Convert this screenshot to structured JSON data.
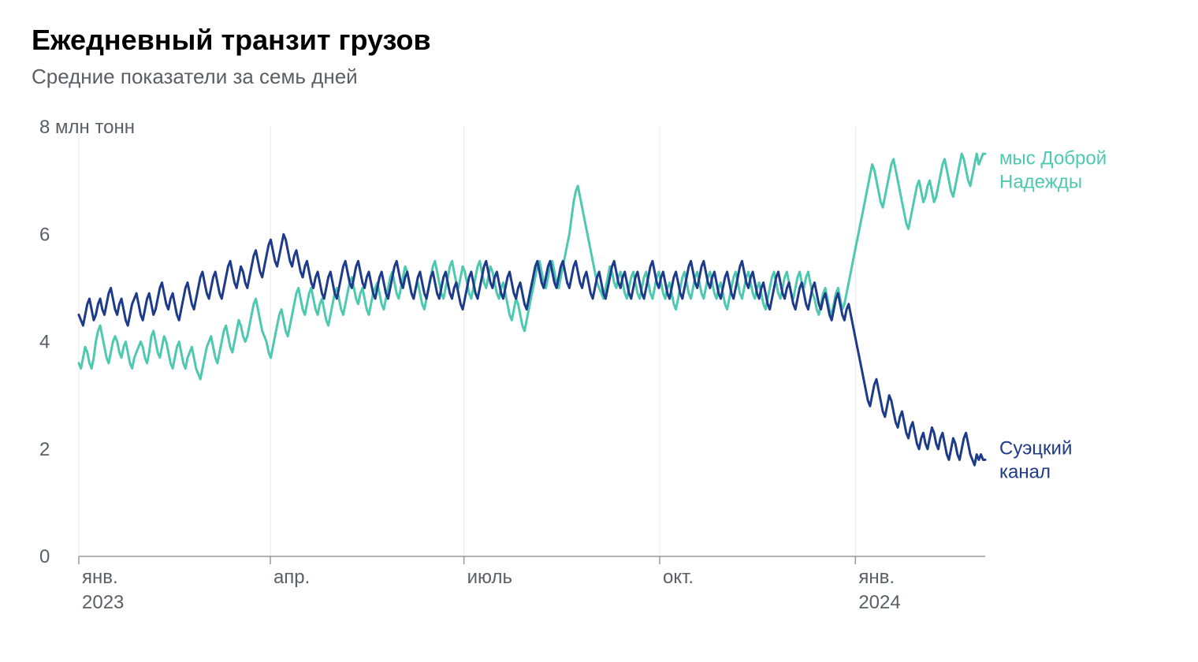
{
  "chart": {
    "type": "line",
    "title": "Ежедневный транзит грузов",
    "subtitle": "Средние показатели за семь дней",
    "y_unit_label": "8 млн тонн",
    "background_color": "#ffffff",
    "grid_color": "#e8e8e8",
    "axis_color": "#9a9a9a",
    "label_color": "#5a5f66",
    "title_fontsize": 36,
    "subtitle_fontsize": 26,
    "tick_fontsize": 24,
    "line_width": 3,
    "ylim": [
      0,
      8
    ],
    "yticks": [
      0,
      2,
      4,
      6
    ],
    "y_extra_label_at": 8,
    "x_range_days": 426,
    "xticks": [
      {
        "day": 0,
        "label": "янв.",
        "year": "2023"
      },
      {
        "day": 90,
        "label": "апр.",
        "year": ""
      },
      {
        "day": 181,
        "label": "июль",
        "year": ""
      },
      {
        "day": 273,
        "label": "окт.",
        "year": ""
      },
      {
        "day": 365,
        "label": "янв.",
        "year": "2024"
      }
    ],
    "series": [
      {
        "name": "мыс Доброй Надежды",
        "labelLines": [
          "мыс Доброй",
          "Надежды"
        ],
        "color": "#4ec9b0",
        "label_y": 7.3,
        "values": [
          3.6,
          3.5,
          3.7,
          3.9,
          3.8,
          3.6,
          3.5,
          3.7,
          4.0,
          4.2,
          4.3,
          4.1,
          3.9,
          3.7,
          3.6,
          3.8,
          4.0,
          4.1,
          4.0,
          3.8,
          3.7,
          3.9,
          4.0,
          3.8,
          3.6,
          3.5,
          3.7,
          3.8,
          3.9,
          4.0,
          3.9,
          3.7,
          3.6,
          3.8,
          4.1,
          4.2,
          4.0,
          3.8,
          3.7,
          3.9,
          4.1,
          4.0,
          3.8,
          3.6,
          3.5,
          3.7,
          3.9,
          4.0,
          3.8,
          3.6,
          3.5,
          3.7,
          3.8,
          3.9,
          3.7,
          3.5,
          3.4,
          3.3,
          3.5,
          3.7,
          3.9,
          4.0,
          4.1,
          3.9,
          3.7,
          3.6,
          3.8,
          4.0,
          4.2,
          4.3,
          4.1,
          3.9,
          3.8,
          4.0,
          4.2,
          4.4,
          4.3,
          4.1,
          4.0,
          4.1,
          4.3,
          4.5,
          4.7,
          4.8,
          4.6,
          4.4,
          4.2,
          4.1,
          4.0,
          3.8,
          3.7,
          3.9,
          4.1,
          4.3,
          4.5,
          4.6,
          4.4,
          4.2,
          4.1,
          4.3,
          4.5,
          4.7,
          4.9,
          5.0,
          4.8,
          4.6,
          4.5,
          4.7,
          4.9,
          5.0,
          4.8,
          4.6,
          4.5,
          4.7,
          4.8,
          4.6,
          4.4,
          4.3,
          4.5,
          4.7,
          4.9,
          5.0,
          4.8,
          4.6,
          4.5,
          4.7,
          4.9,
          5.1,
          5.2,
          5.0,
          4.8,
          4.7,
          4.9,
          5.0,
          4.8,
          4.6,
          4.5,
          4.7,
          4.9,
          5.0,
          5.1,
          4.9,
          4.7,
          4.6,
          4.8,
          5.0,
          5.2,
          5.3,
          5.1,
          4.9,
          4.8,
          5.0,
          5.2,
          5.4,
          5.3,
          5.1,
          4.9,
          4.8,
          5.0,
          5.1,
          4.9,
          4.7,
          4.6,
          4.8,
          5.0,
          5.2,
          5.4,
          5.5,
          5.3,
          5.1,
          4.9,
          4.8,
          5.0,
          5.2,
          5.4,
          5.5,
          5.3,
          5.1,
          5.0,
          5.2,
          5.4,
          5.3,
          5.1,
          4.9,
          4.8,
          5.0,
          5.2,
          5.4,
          5.5,
          5.3,
          5.1,
          5.0,
          5.2,
          5.4,
          5.3,
          5.1,
          4.9,
          4.8,
          5.0,
          5.1,
          4.9,
          4.7,
          4.5,
          4.4,
          4.6,
          4.8,
          4.7,
          4.5,
          4.3,
          4.2,
          4.4,
          4.6,
          4.8,
          5.0,
          5.2,
          5.4,
          5.5,
          5.3,
          5.1,
          5.0,
          5.2,
          5.4,
          5.5,
          5.3,
          5.1,
          5.0,
          5.2,
          5.4,
          5.6,
          5.8,
          6.0,
          6.3,
          6.6,
          6.8,
          6.9,
          6.7,
          6.5,
          6.3,
          6.1,
          5.9,
          5.7,
          5.5,
          5.3,
          5.1,
          5.0,
          4.9,
          4.8,
          5.0,
          5.2,
          5.4,
          5.3,
          5.1,
          5.0,
          5.2,
          5.3,
          5.1,
          4.9,
          4.8,
          5.0,
          5.2,
          5.3,
          5.1,
          4.9,
          4.8,
          5.0,
          5.2,
          5.3,
          5.1,
          4.9,
          4.8,
          5.0,
          5.2,
          5.3,
          5.1,
          4.9,
          4.8,
          5.0,
          5.1,
          4.9,
          4.7,
          4.6,
          4.8,
          5.0,
          5.2,
          5.3,
          5.1,
          4.9,
          4.8,
          5.0,
          5.2,
          5.3,
          5.1,
          4.9,
          4.8,
          5.0,
          5.2,
          5.3,
          5.1,
          4.9,
          4.8,
          5.0,
          5.1,
          4.9,
          4.7,
          4.6,
          4.8,
          5.0,
          5.2,
          5.3,
          5.1,
          4.9,
          4.8,
          5.0,
          5.2,
          5.3,
          5.1,
          4.9,
          4.8,
          5.0,
          5.1,
          4.9,
          4.7,
          4.6,
          4.8,
          5.0,
          5.2,
          5.3,
          5.1,
          4.9,
          4.8,
          5.0,
          5.2,
          5.3,
          5.1,
          4.9,
          4.8,
          5.0,
          5.2,
          5.3,
          5.1,
          5.0,
          5.2,
          5.3,
          5.1,
          4.9,
          4.8,
          4.6,
          4.5,
          4.7,
          4.9,
          5.0,
          4.8,
          4.6,
          4.5,
          4.7,
          4.9,
          5.0,
          4.8,
          4.6,
          4.7,
          4.9,
          5.1,
          5.3,
          5.5,
          5.7,
          5.9,
          6.1,
          6.3,
          6.5,
          6.7,
          6.9,
          7.1,
          7.3,
          7.2,
          7.0,
          6.8,
          6.6,
          6.5,
          6.7,
          6.9,
          7.1,
          7.3,
          7.4,
          7.2,
          7.0,
          6.8,
          6.6,
          6.4,
          6.2,
          6.1,
          6.3,
          6.5,
          6.7,
          6.9,
          7.0,
          6.8,
          6.6,
          6.7,
          6.9,
          7.0,
          6.8,
          6.6,
          6.7,
          6.9,
          7.1,
          7.3,
          7.4,
          7.2,
          7.0,
          6.8,
          6.7,
          6.9,
          7.1,
          7.3,
          7.5,
          7.4,
          7.2,
          7.0,
          6.9,
          7.1,
          7.3,
          7.5,
          7.3,
          7.4,
          7.5,
          7.5
        ]
      },
      {
        "name": "Суэцкий канал",
        "labelLines": [
          "Суэцкий",
          "канал"
        ],
        "color": "#1e3a8a",
        "label_y": 1.9,
        "values": [
          4.5,
          4.4,
          4.3,
          4.5,
          4.7,
          4.8,
          4.6,
          4.4,
          4.5,
          4.7,
          4.8,
          4.6,
          4.5,
          4.7,
          4.9,
          5.0,
          4.8,
          4.6,
          4.5,
          4.7,
          4.8,
          4.6,
          4.4,
          4.3,
          4.5,
          4.7,
          4.8,
          4.9,
          4.7,
          4.5,
          4.4,
          4.6,
          4.8,
          4.9,
          4.7,
          4.5,
          4.6,
          4.8,
          5.0,
          5.1,
          4.9,
          4.7,
          4.6,
          4.8,
          4.9,
          4.7,
          4.5,
          4.4,
          4.6,
          4.8,
          5.0,
          5.1,
          4.9,
          4.7,
          4.6,
          4.8,
          5.0,
          5.2,
          5.3,
          5.1,
          4.9,
          4.8,
          5.0,
          5.2,
          5.3,
          5.1,
          4.9,
          4.8,
          5.0,
          5.2,
          5.4,
          5.5,
          5.3,
          5.1,
          5.0,
          5.2,
          5.4,
          5.3,
          5.1,
          5.0,
          5.2,
          5.4,
          5.6,
          5.7,
          5.5,
          5.3,
          5.2,
          5.4,
          5.6,
          5.8,
          5.9,
          5.7,
          5.5,
          5.4,
          5.6,
          5.8,
          6.0,
          5.9,
          5.7,
          5.5,
          5.4,
          5.6,
          5.7,
          5.5,
          5.3,
          5.2,
          5.4,
          5.5,
          5.3,
          5.1,
          5.0,
          5.2,
          5.3,
          5.1,
          4.9,
          4.8,
          5.0,
          5.2,
          5.3,
          5.1,
          4.9,
          4.8,
          5.0,
          5.2,
          5.4,
          5.5,
          5.3,
          5.1,
          5.0,
          5.2,
          5.4,
          5.5,
          5.3,
          5.1,
          5.0,
          5.2,
          5.3,
          5.1,
          4.9,
          4.8,
          5.0,
          5.2,
          5.3,
          5.1,
          4.9,
          4.8,
          5.0,
          5.2,
          5.4,
          5.5,
          5.3,
          5.1,
          5.0,
          5.2,
          5.3,
          5.1,
          4.9,
          4.8,
          5.0,
          5.2,
          5.3,
          5.1,
          4.9,
          4.8,
          5.0,
          5.2,
          5.3,
          5.1,
          4.9,
          4.8,
          5.0,
          5.2,
          5.3,
          5.1,
          4.9,
          4.8,
          5.0,
          5.1,
          4.9,
          4.7,
          4.6,
          4.8,
          5.0,
          5.2,
          5.3,
          5.1,
          4.9,
          4.8,
          5.0,
          5.2,
          5.4,
          5.5,
          5.3,
          5.1,
          5.0,
          5.2,
          5.3,
          5.1,
          4.9,
          4.8,
          5.0,
          5.2,
          5.3,
          5.1,
          4.9,
          4.8,
          5.0,
          5.1,
          4.9,
          4.7,
          4.6,
          4.8,
          5.0,
          5.2,
          5.4,
          5.5,
          5.3,
          5.1,
          5.0,
          5.2,
          5.4,
          5.5,
          5.3,
          5.1,
          5.0,
          5.2,
          5.4,
          5.5,
          5.3,
          5.1,
          5.0,
          5.2,
          5.4,
          5.5,
          5.3,
          5.1,
          5.0,
          5.2,
          5.3,
          5.1,
          4.9,
          4.8,
          5.0,
          5.2,
          5.3,
          5.1,
          4.9,
          4.8,
          5.0,
          5.2,
          5.4,
          5.5,
          5.3,
          5.1,
          5.0,
          5.2,
          5.3,
          5.1,
          4.9,
          4.8,
          5.0,
          5.2,
          5.3,
          5.1,
          4.9,
          4.8,
          5.0,
          5.2,
          5.4,
          5.5,
          5.3,
          5.1,
          5.0,
          5.2,
          5.3,
          5.1,
          4.9,
          4.8,
          5.0,
          5.2,
          5.3,
          5.1,
          4.9,
          4.8,
          5.0,
          5.2,
          5.4,
          5.5,
          5.3,
          5.1,
          5.0,
          5.2,
          5.4,
          5.5,
          5.3,
          5.1,
          5.0,
          5.2,
          5.3,
          5.1,
          4.9,
          4.8,
          5.0,
          5.2,
          5.3,
          5.1,
          4.9,
          4.8,
          5.0,
          5.2,
          5.4,
          5.5,
          5.3,
          5.1,
          5.0,
          5.2,
          5.3,
          5.1,
          4.9,
          4.8,
          5.0,
          5.1,
          4.9,
          4.7,
          4.6,
          4.8,
          5.0,
          5.2,
          5.3,
          5.1,
          4.9,
          4.8,
          5.0,
          5.1,
          4.9,
          4.7,
          4.6,
          4.8,
          5.0,
          5.1,
          4.9,
          4.7,
          4.6,
          4.8,
          5.0,
          5.1,
          4.9,
          4.7,
          4.6,
          4.8,
          4.9,
          4.7,
          4.5,
          4.4,
          4.6,
          4.8,
          4.9,
          4.7,
          4.5,
          4.4,
          4.6,
          4.7,
          4.5,
          4.3,
          4.1,
          3.9,
          3.7,
          3.5,
          3.3,
          3.1,
          2.9,
          2.8,
          3.0,
          3.2,
          3.3,
          3.1,
          2.9,
          2.7,
          2.6,
          2.8,
          3.0,
          2.9,
          2.7,
          2.5,
          2.4,
          2.6,
          2.7,
          2.5,
          2.3,
          2.2,
          2.4,
          2.5,
          2.3,
          2.1,
          2.0,
          2.2,
          2.3,
          2.1,
          2.0,
          2.2,
          2.4,
          2.3,
          2.1,
          2.0,
          2.2,
          2.3,
          2.1,
          1.9,
          1.8,
          2.0,
          2.2,
          2.1,
          1.9,
          1.8,
          2.0,
          2.2,
          2.3,
          2.1,
          1.9,
          1.8,
          1.7,
          1.9,
          1.8,
          1.9,
          1.8,
          1.8
        ]
      }
    ]
  }
}
